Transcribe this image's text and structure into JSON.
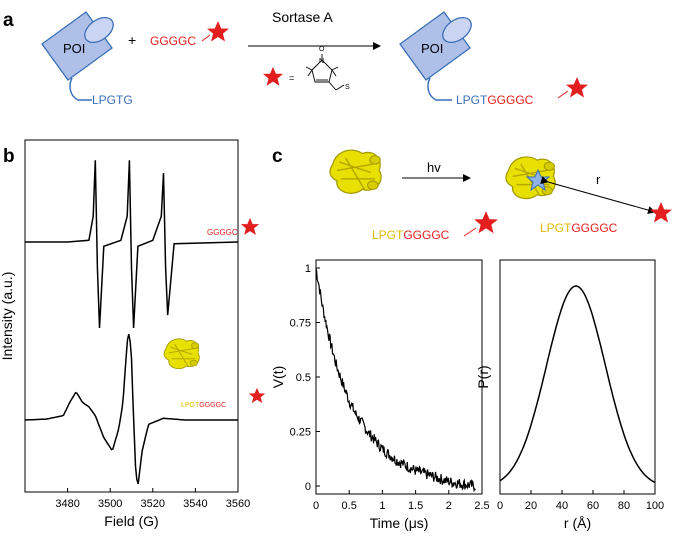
{
  "panel_a": {
    "label": "a",
    "poi_label": "POI",
    "lpxtg": "LPGTG",
    "plus": "+",
    "peptide": "GGGGC",
    "enzyme": "Sortase A",
    "star_equals": "=",
    "product_poi": "POI",
    "product_prefix": "LPGT",
    "product_peptide": "GGGGC",
    "nitroxide_o": "O",
    "nitroxide_n": "N",
    "nitroxide_s": "S"
  },
  "panel_b": {
    "label": "b",
    "top_label": "GGGGC",
    "bottom_prefix": "LPGT",
    "bottom_peptide": "GGGGC"
  },
  "panel_c": {
    "label": "c",
    "hv": "hv",
    "r": "r",
    "left_prefix": "LPGT",
    "left_peptide": "GGGGC",
    "right_prefix": "LPGT",
    "right_peptide": "GGGGC"
  },
  "colors": {
    "star": "#e21e1e",
    "blue_text": "#3a6fb8",
    "protein_yellow": "#e8e000",
    "cylinder": "#aebfe8"
  },
  "chart_data": [
    {
      "id": "epr",
      "type": "line",
      "xlabel": "Field (G)",
      "ylabel": "Intensity (a.u.)",
      "xlim": [
        3460,
        3560
      ],
      "xticks": [
        3480,
        3500,
        3520,
        3540,
        3560
      ],
      "series": [
        {
          "x": [
            3460,
            3480,
            3490,
            3492,
            3493,
            3494,
            3495,
            3497,
            3505,
            3508,
            3509,
            3510,
            3511,
            3513,
            3520,
            3524,
            3525,
            3526,
            3527,
            3530,
            3560
          ],
          "y": [
            0,
            0,
            0.02,
            0.3,
            0.95,
            -0.3,
            -1.0,
            -0.05,
            0.02,
            0.3,
            0.95,
            -0.3,
            -1.0,
            -0.05,
            0.02,
            0.3,
            0.8,
            -0.3,
            -0.85,
            -0.02,
            0
          ]
        },
        {
          "x": [
            3460,
            3470,
            3478,
            3481,
            3484,
            3487,
            3490,
            3493,
            3497,
            3501,
            3504,
            3506,
            3508,
            3509,
            3510,
            3511,
            3512,
            3513,
            3515,
            3518,
            3525,
            3535,
            3560
          ],
          "y": [
            0,
            0.01,
            0.05,
            0.2,
            0.32,
            0.2,
            0.15,
            0.05,
            -0.2,
            -0.35,
            -0.1,
            0.2,
            0.9,
            1.0,
            0.7,
            0.0,
            -0.6,
            -0.75,
            -0.35,
            -0.05,
            0.02,
            0,
            0
          ]
        }
      ]
    },
    {
      "id": "deer",
      "type": "line",
      "xlabel": "Time (μs)",
      "ylabel": "V(t)",
      "xlim": [
        0,
        2.5
      ],
      "ylim": [
        0,
        1
      ],
      "xticks": [
        0,
        0.5,
        1,
        1.5,
        2,
        2.5
      ],
      "xticklabels": [
        "0",
        "0.5",
        "1",
        "1.5",
        "2",
        "2.5"
      ],
      "yticks": [
        0,
        0.25,
        0.5,
        0.75,
        1
      ],
      "yticklabels": [
        "0",
        "0.25",
        "0.5",
        "0.75",
        "1"
      ],
      "series": [
        {
          "x": [
            0,
            0.1,
            0.2,
            0.3,
            0.4,
            0.5,
            0.6,
            0.8,
            1.0,
            1.2,
            1.5,
            1.8,
            2.0,
            2.2,
            2.4
          ],
          "y": [
            1,
            0.82,
            0.68,
            0.56,
            0.47,
            0.39,
            0.33,
            0.24,
            0.17,
            0.12,
            0.07,
            0.04,
            0.02,
            0.01,
            0.0
          ]
        }
      ]
    },
    {
      "id": "distance",
      "type": "line",
      "xlabel": "r (Å)",
      "ylabel": "P(r)",
      "xlim": [
        0,
        100
      ],
      "xticks": [
        0,
        20,
        40,
        60,
        80,
        100
      ],
      "series": [
        {
          "x": [
            0,
            10,
            20,
            30,
            40,
            48,
            55,
            60,
            70,
            80,
            90,
            100
          ],
          "y": [
            0.03,
            0.11,
            0.3,
            0.6,
            0.9,
            1.0,
            0.95,
            0.86,
            0.56,
            0.26,
            0.08,
            0.02
          ]
        }
      ]
    }
  ]
}
